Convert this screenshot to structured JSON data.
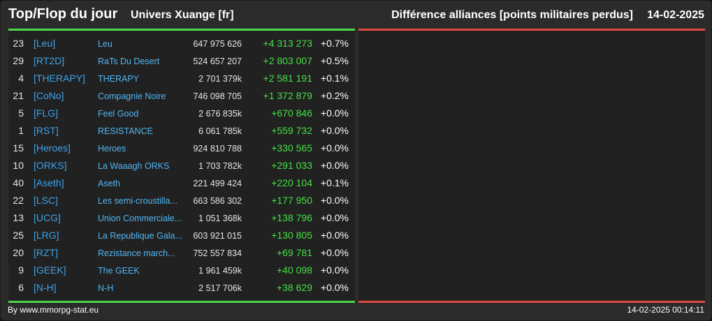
{
  "header": {
    "title": "Top/Flop du jour",
    "universe": "Univers Xuange [fr]",
    "difference": "Différence alliances [points militaires perdus]",
    "date": "14-02-2025"
  },
  "colors": {
    "top_accent": "#4cd84c",
    "flop_accent": "#e04a42",
    "tag": "#3fa2e8",
    "delta_positive": "#46e046"
  },
  "top": [
    {
      "rank": "23",
      "tag": "[Leu]",
      "name": "Leu",
      "total": "647 975 626",
      "delta": "+4 313 273",
      "pct": "+0.7%"
    },
    {
      "rank": "29",
      "tag": "[RT2D]",
      "name": "RaTs Du Desert",
      "total": "524 657 207",
      "delta": "+2 803 007",
      "pct": "+0.5%"
    },
    {
      "rank": "4",
      "tag": "[THERAPY]",
      "name": "THERAPY",
      "total": "2 701 379k",
      "delta": "+2 581 191",
      "pct": "+0.1%"
    },
    {
      "rank": "21",
      "tag": "[CoNo]",
      "name": "Compagnie Noire",
      "total": "746 098 705",
      "delta": "+1 372 879",
      "pct": "+0.2%"
    },
    {
      "rank": "5",
      "tag": "[FLG]",
      "name": "Feel Good",
      "total": "2 676 835k",
      "delta": "+670 846",
      "pct": "+0.0%"
    },
    {
      "rank": "1",
      "tag": "[RST]",
      "name": "RESISTANCE",
      "total": "6 061 785k",
      "delta": "+559 732",
      "pct": "+0.0%"
    },
    {
      "rank": "15",
      "tag": "[Heroes]",
      "name": "Heroes",
      "total": "924 810 788",
      "delta": "+330 565",
      "pct": "+0.0%"
    },
    {
      "rank": "10",
      "tag": "[ORKS]",
      "name": "La Waaagh ORKS",
      "total": "1 703 782k",
      "delta": "+291 033",
      "pct": "+0.0%"
    },
    {
      "rank": "40",
      "tag": "[Aseth]",
      "name": "Aseth",
      "total": "221 499 424",
      "delta": "+220 104",
      "pct": "+0.1%"
    },
    {
      "rank": "22",
      "tag": "[LSC]",
      "name": "Les semi-croustilla...",
      "total": "663 586 302",
      "delta": "+177 950",
      "pct": "+0.0%"
    },
    {
      "rank": "13",
      "tag": "[UCG]",
      "name": "Union Commerciale...",
      "total": "1 051 368k",
      "delta": "+138 796",
      "pct": "+0.0%"
    },
    {
      "rank": "25",
      "tag": "[LRG]",
      "name": "La Republique Gala...",
      "total": "603 921 015",
      "delta": "+130 805",
      "pct": "+0.0%"
    },
    {
      "rank": "20",
      "tag": "[RZT]",
      "name": "Rezistance march...",
      "total": "752 557 834",
      "delta": "+69 781",
      "pct": "+0.0%"
    },
    {
      "rank": "9",
      "tag": "[GEEK]",
      "name": "The GEEK",
      "total": "1 961 459k",
      "delta": "+40 098",
      "pct": "+0.0%"
    },
    {
      "rank": "6",
      "tag": "[N-H]",
      "name": "N-H",
      "total": "2 517 706k",
      "delta": "+38 629",
      "pct": "+0.0%"
    }
  ],
  "footer": {
    "source": "By www.mmorpg-stat.eu",
    "timestamp": "14-02-2025 00:14:11"
  }
}
